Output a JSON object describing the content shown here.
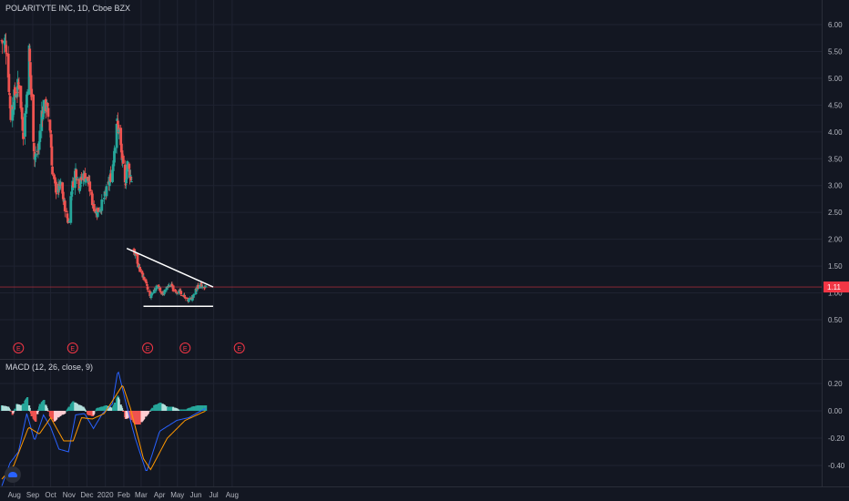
{
  "header": {
    "symbol_label": "POLARITYTE INC, 1D, Cboe BZX"
  },
  "macd_panel": {
    "label": "MACD (12, 26, close, 9)"
  },
  "colors": {
    "background": "#131722",
    "grid": "#1f2331",
    "axis_text": "#b2b5be",
    "up": "#26a69a",
    "down": "#ef5350",
    "hist_up": "#26a69a",
    "hist_up_light": "#b2dfdb",
    "hist_down": "#ef5350",
    "hist_down_light": "#ffcdd2",
    "macd_line": "#2962ff",
    "signal_line": "#ff9800",
    "trendline": "#ffffff",
    "price_line": "#f23645",
    "earnings": "#f23645"
  },
  "chart_data": [
    {
      "type": "candlestick",
      "title": "POLARITYTE INC, 1D, Cboe BZX",
      "x_ticks": [
        "Aug",
        "Sep",
        "Oct",
        "Nov",
        "Dec",
        "2020",
        "Feb",
        "Mar",
        "Apr",
        "May",
        "Jun",
        "Jul",
        "Aug"
      ],
      "y_ticks": [
        "6.00",
        "5.50",
        "5.00",
        "4.50",
        "4.00",
        "3.50",
        "3.00",
        "2.50",
        "2.00",
        "1.50",
        "1.00",
        "0.50"
      ],
      "ylim": [
        0.3,
        6.3
      ],
      "last_price": "1.11",
      "earnings_markers": [
        "E",
        "E",
        "E",
        "E",
        "E"
      ],
      "earnings_dates": [
        "2019-08-08",
        "2019-11-07",
        "2020-03-12",
        "2020-05-14",
        "2020-08-13"
      ],
      "trendlines": [
        {
          "name": "resistance",
          "start": [
            "2020-02-06",
            1.83
          ],
          "end": [
            "2020-06-30",
            1.11
          ]
        },
        {
          "name": "support",
          "start": [
            "2020-03-05",
            0.75
          ],
          "end": [
            "2020-06-30",
            0.75
          ]
        }
      ],
      "segments": [
        {
          "start": "2019-07-11",
          "end": "2020-02-14",
          "seed": 7,
          "keypoints": [
            [
              "2019-07-11",
              5.7
            ],
            [
              "2019-07-19",
              5.6
            ],
            [
              "2019-07-26",
              4.3
            ],
            [
              "2019-08-02",
              4.7
            ],
            [
              "2019-08-09",
              4.9
            ],
            [
              "2019-08-16",
              4.0
            ],
            [
              "2019-08-21",
              4.5
            ],
            [
              "2019-08-26",
              5.5
            ],
            [
              "2019-08-29",
              4.8
            ],
            [
              "2019-09-04",
              3.5
            ],
            [
              "2019-09-11",
              3.7
            ],
            [
              "2019-09-16",
              4.4
            ],
            [
              "2019-09-24",
              4.5
            ],
            [
              "2019-10-01",
              4.0
            ],
            [
              "2019-10-04",
              3.2
            ],
            [
              "2019-10-11",
              2.9
            ],
            [
              "2019-10-18",
              3.0
            ],
            [
              "2019-10-25",
              2.6
            ],
            [
              "2019-10-31",
              2.3
            ],
            [
              "2019-11-05",
              2.9
            ],
            [
              "2019-11-12",
              3.3
            ],
            [
              "2019-11-18",
              3.0
            ],
            [
              "2019-11-25",
              3.2
            ],
            [
              "2019-12-03",
              3.1
            ],
            [
              "2019-12-10",
              2.7
            ],
            [
              "2019-12-17",
              2.5
            ],
            [
              "2019-12-24",
              2.6
            ],
            [
              "2019-12-31",
              2.8
            ],
            [
              "2020-01-06",
              3.0
            ],
            [
              "2020-01-13",
              3.3
            ],
            [
              "2020-01-20",
              4.2
            ],
            [
              "2020-01-24",
              4.0
            ],
            [
              "2020-01-29",
              3.5
            ],
            [
              "2020-02-03",
              3.0
            ],
            [
              "2020-02-07",
              3.4
            ],
            [
              "2020-02-14",
              3.1
            ]
          ]
        },
        {
          "start": "2020-02-18",
          "end": "2020-06-18",
          "seed": 11,
          "keypoints": [
            [
              "2020-02-18",
              1.78
            ],
            [
              "2020-02-24",
              1.55
            ],
            [
              "2020-03-02",
              1.35
            ],
            [
              "2020-03-09",
              1.2
            ],
            [
              "2020-03-16",
              0.9
            ],
            [
              "2020-03-23",
              1.05
            ],
            [
              "2020-03-30",
              1.15
            ],
            [
              "2020-04-06",
              0.95
            ],
            [
              "2020-04-13",
              1.1
            ],
            [
              "2020-04-20",
              1.15
            ],
            [
              "2020-04-27",
              1.0
            ],
            [
              "2020-05-04",
              1.05
            ],
            [
              "2020-05-11",
              0.95
            ],
            [
              "2020-05-18",
              0.85
            ],
            [
              "2020-05-25",
              0.9
            ],
            [
              "2020-06-01",
              1.08
            ],
            [
              "2020-06-08",
              1.15
            ],
            [
              "2020-06-18",
              1.11
            ]
          ]
        }
      ]
    },
    {
      "type": "bar",
      "title": "MACD (12, 26, close, 9)",
      "y_ticks": [
        "0.20",
        "0.00",
        "-0.20",
        "-0.40"
      ],
      "ylim": [
        -0.48,
        0.35
      ],
      "series": [
        {
          "name": "MACD",
          "type": "line",
          "keypoints": [
            [
              "2019-07-11",
              -0.55
            ],
            [
              "2019-07-25",
              -0.38
            ],
            [
              "2019-08-08",
              -0.3
            ],
            [
              "2019-08-22",
              -0.02
            ],
            [
              "2019-09-04",
              -0.22
            ],
            [
              "2019-09-19",
              -0.03
            ],
            [
              "2019-10-01",
              -0.12
            ],
            [
              "2019-10-15",
              -0.28
            ],
            [
              "2019-10-31",
              -0.3
            ],
            [
              "2019-11-12",
              -0.03
            ],
            [
              "2019-11-27",
              -0.02
            ],
            [
              "2019-12-12",
              -0.13
            ],
            [
              "2019-12-27",
              -0.02
            ],
            [
              "2020-01-13",
              0.05
            ],
            [
              "2020-01-22",
              0.3
            ],
            [
              "2020-02-05",
              0.05
            ],
            [
              "2020-02-20",
              -0.2
            ],
            [
              "2020-03-10",
              -0.45
            ],
            [
              "2020-04-01",
              -0.15
            ],
            [
              "2020-04-30",
              -0.07
            ],
            [
              "2020-05-20",
              -0.05
            ],
            [
              "2020-06-18",
              0.02
            ]
          ]
        },
        {
          "name": "Signal",
          "type": "line",
          "keypoints": [
            [
              "2019-07-11",
              -0.5
            ],
            [
              "2019-07-31",
              -0.4
            ],
            [
              "2019-08-25",
              -0.12
            ],
            [
              "2019-09-12",
              -0.17
            ],
            [
              "2019-10-01",
              -0.05
            ],
            [
              "2019-10-23",
              -0.22
            ],
            [
              "2019-11-08",
              -0.22
            ],
            [
              "2019-11-22",
              -0.05
            ],
            [
              "2019-12-10",
              -0.06
            ],
            [
              "2019-12-30",
              -0.02
            ],
            [
              "2020-01-17",
              0.1
            ],
            [
              "2020-01-30",
              0.19
            ],
            [
              "2020-02-12",
              0.02
            ],
            [
              "2020-03-05",
              -0.35
            ],
            [
              "2020-03-17",
              -0.43
            ],
            [
              "2020-04-14",
              -0.2
            ],
            [
              "2020-05-14",
              -0.07
            ],
            [
              "2020-06-18",
              0.0
            ]
          ]
        },
        {
          "name": "Histogram",
          "type": "bar",
          "keypoints": [
            [
              "2019-07-11",
              0.04
            ],
            [
              "2019-07-22",
              0.03
            ],
            [
              "2019-07-29",
              -0.03
            ],
            [
              "2019-08-05",
              0.05
            ],
            [
              "2019-08-14",
              0.04
            ],
            [
              "2019-08-23",
              0.1
            ],
            [
              "2019-08-30",
              -0.04
            ],
            [
              "2019-09-06",
              -0.08
            ],
            [
              "2019-09-13",
              0.05
            ],
            [
              "2019-09-20",
              0.08
            ],
            [
              "2019-09-30",
              -0.04
            ],
            [
              "2019-10-07",
              -0.08
            ],
            [
              "2019-10-16",
              -0.04
            ],
            [
              "2019-10-25",
              -0.02
            ],
            [
              "2019-11-01",
              0.03
            ],
            [
              "2019-11-08",
              0.07
            ],
            [
              "2019-11-15",
              0.05
            ],
            [
              "2019-11-25",
              0.03
            ],
            [
              "2019-12-03",
              -0.03
            ],
            [
              "2019-12-11",
              -0.04
            ],
            [
              "2019-12-18",
              0.02
            ],
            [
              "2019-12-26",
              0.03
            ],
            [
              "2020-01-03",
              0.04
            ],
            [
              "2020-01-13",
              0.02
            ],
            [
              "2020-01-22",
              0.11
            ],
            [
              "2020-01-29",
              0.02
            ],
            [
              "2020-02-04",
              -0.06
            ],
            [
              "2020-02-10",
              -0.05
            ],
            [
              "2020-02-21",
              -0.1
            ],
            [
              "2020-02-28",
              -0.1
            ],
            [
              "2020-03-06",
              -0.06
            ],
            [
              "2020-03-13",
              -0.02
            ],
            [
              "2020-03-23",
              0.04
            ],
            [
              "2020-04-03",
              0.06
            ],
            [
              "2020-04-14",
              0.03
            ],
            [
              "2020-04-23",
              0.03
            ],
            [
              "2020-05-04",
              0.01
            ],
            [
              "2020-05-15",
              0.01
            ],
            [
              "2020-05-26",
              0.03
            ],
            [
              "2020-06-05",
              0.04
            ],
            [
              "2020-06-18",
              0.04
            ]
          ]
        }
      ]
    }
  ]
}
